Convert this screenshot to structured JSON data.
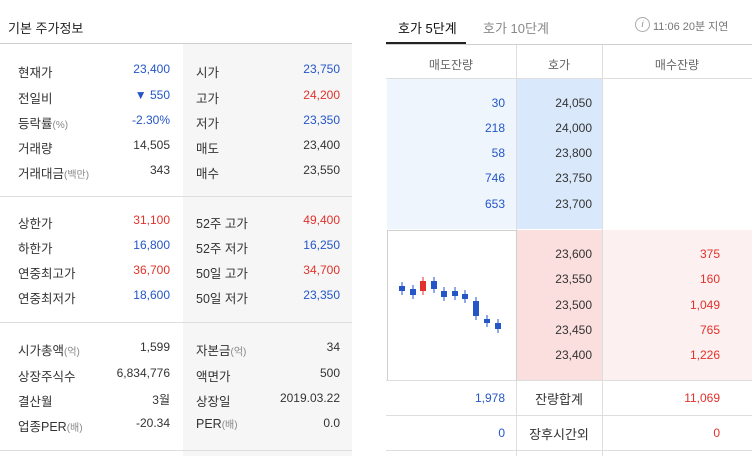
{
  "left": {
    "title": "기본 주가정보",
    "rows": [
      {
        "l1": "현재가",
        "l1s": "",
        "v1": "23,400",
        "c1": "blue",
        "l2": "시가",
        "l2s": "",
        "v2": "23,750",
        "c2": "blue"
      },
      {
        "l1": "전일비",
        "l1s": "",
        "v1": "▼ 550",
        "c1": "blue",
        "l2": "고가",
        "l2s": "",
        "v2": "24,200",
        "c2": "red"
      },
      {
        "l1": "등락률",
        "l1s": "(%)",
        "v1": "-2.30%",
        "c1": "blue",
        "l2": "저가",
        "l2s": "",
        "v2": "23,350",
        "c2": "blue"
      },
      {
        "l1": "거래량",
        "l1s": "",
        "v1": "14,505",
        "c1": "dark",
        "l2": "매도",
        "l2s": "",
        "v2": "23,400",
        "c2": "dark"
      },
      {
        "l1": "거래대금",
        "l1s": "(백만)",
        "v1": "343",
        "c1": "dark",
        "l2": "매수",
        "l2s": "",
        "v2": "23,550",
        "c2": "dark"
      },
      {
        "l1": "상한가",
        "l1s": "",
        "v1": "31,100",
        "c1": "red",
        "l2": "52주 고가",
        "l2s": "",
        "v2": "49,400",
        "c2": "red"
      },
      {
        "l1": "하한가",
        "l1s": "",
        "v1": "16,800",
        "c1": "blue",
        "l2": "52주 저가",
        "l2s": "",
        "v2": "16,250",
        "c2": "blue"
      },
      {
        "l1": "연중최고가",
        "l1s": "",
        "v1": "36,700",
        "c1": "red",
        "l2": "50일 고가",
        "l2s": "",
        "v2": "34,700",
        "c2": "red"
      },
      {
        "l1": "연중최저가",
        "l1s": "",
        "v1": "18,600",
        "c1": "blue",
        "l2": "50일 저가",
        "l2s": "",
        "v2": "23,350",
        "c2": "blue"
      },
      {
        "l1": "시가총액",
        "l1s": "(억)",
        "v1": "1,599",
        "c1": "dark",
        "l2": "자본금",
        "l2s": "(억)",
        "v2": "34",
        "c2": "dark"
      },
      {
        "l1": "상장주식수",
        "l1s": "",
        "v1": "6,834,776",
        "c1": "dark",
        "l2": "액면가",
        "l2s": "",
        "v2": "500",
        "c2": "dark"
      },
      {
        "l1": "결산월",
        "l1s": "",
        "v1": "3월",
        "c1": "dark",
        "l2": "상장일",
        "l2s": "",
        "v2": "2019.03.22",
        "c2": "dark"
      },
      {
        "l1": "업종PER",
        "l1s": "(배)",
        "v1": "-20.34",
        "c1": "dark",
        "l2": "PER",
        "l2s": "(배)",
        "v2": "0.0",
        "c2": "dark"
      }
    ]
  },
  "orderbook": {
    "tabs": [
      "호가 5단계",
      "호가 10단계"
    ],
    "time_note": "11:06 20분 지연",
    "info_icon": "i",
    "headers": [
      "매도잔량",
      "호가",
      "매수잔량"
    ],
    "asks": [
      {
        "qty": "30",
        "price": "24,050"
      },
      {
        "qty": "218",
        "price": "24,000"
      },
      {
        "qty": "58",
        "price": "23,800"
      },
      {
        "qty": "746",
        "price": "23,750"
      },
      {
        "qty": "653",
        "price": "23,700"
      }
    ],
    "bids": [
      {
        "price": "23,600",
        "qty": "375"
      },
      {
        "price": "23,550",
        "qty": "160"
      },
      {
        "price": "23,500",
        "qty": "1,049"
      },
      {
        "price": "23,450",
        "qty": "765"
      },
      {
        "price": "23,400",
        "qty": "1,226"
      }
    ],
    "total": {
      "ask": "1,978",
      "label": "잔량합계",
      "bid": "11,069"
    },
    "after_hours": {
      "ask": "0",
      "label": "장후시간외",
      "bid": "0"
    },
    "colors": {
      "blue": "#2456c8",
      "red": "#e0322b"
    }
  }
}
